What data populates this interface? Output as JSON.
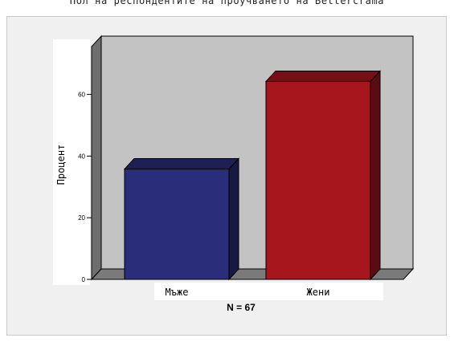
{
  "header": {
    "title": "Пол на респондентите на проучването на Bettercrama"
  },
  "chart_data": {
    "type": "bar",
    "categories": [
      "Мъже",
      "Жени"
    ],
    "values": [
      35.8,
      64.2
    ],
    "ylabel": "Процент",
    "xlabel": "N = 67",
    "yticks": [
      0,
      20,
      40,
      60
    ],
    "ylim": [
      0,
      75
    ],
    "colors": [
      "#2a2d7a",
      "#a8161d"
    ],
    "grid": false
  }
}
